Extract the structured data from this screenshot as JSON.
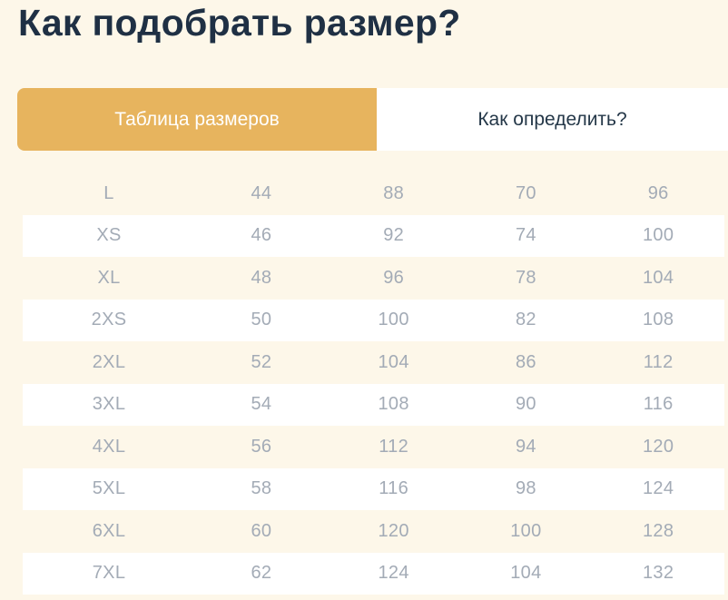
{
  "page": {
    "title": "Как подобрать размер?"
  },
  "colors": {
    "background": "#fdf7e9",
    "accent": "#e7b45e",
    "heading_text": "#1f3044",
    "active_tab_text": "#ffffff",
    "inactive_tab_text": "#243748",
    "table_text": "#a3abb6",
    "row_stripe": "#ffffff"
  },
  "tabs": [
    {
      "label": "Таблица размеров",
      "active": true
    },
    {
      "label": "Как определить?",
      "active": false
    }
  ],
  "size_table": {
    "rows": [
      {
        "size": "L",
        "values": [
          "44",
          "88",
          "70",
          "96"
        ]
      },
      {
        "size": "XS",
        "values": [
          "46",
          "92",
          "74",
          "100"
        ]
      },
      {
        "size": "XL",
        "values": [
          "48",
          "96",
          "78",
          "104"
        ]
      },
      {
        "size": "2XS",
        "values": [
          "50",
          "100",
          "82",
          "108"
        ]
      },
      {
        "size": "2XL",
        "values": [
          "52",
          "104",
          "86",
          "112"
        ]
      },
      {
        "size": "3XL",
        "values": [
          "54",
          "108",
          "90",
          "116"
        ]
      },
      {
        "size": "4XL",
        "values": [
          "56",
          "112",
          "94",
          "120"
        ]
      },
      {
        "size": "5XL",
        "values": [
          "58",
          "116",
          "98",
          "124"
        ]
      },
      {
        "size": "6XL",
        "values": [
          "60",
          "120",
          "100",
          "128"
        ]
      },
      {
        "size": "7XL",
        "values": [
          "62",
          "124",
          "104",
          "132"
        ]
      }
    ]
  }
}
